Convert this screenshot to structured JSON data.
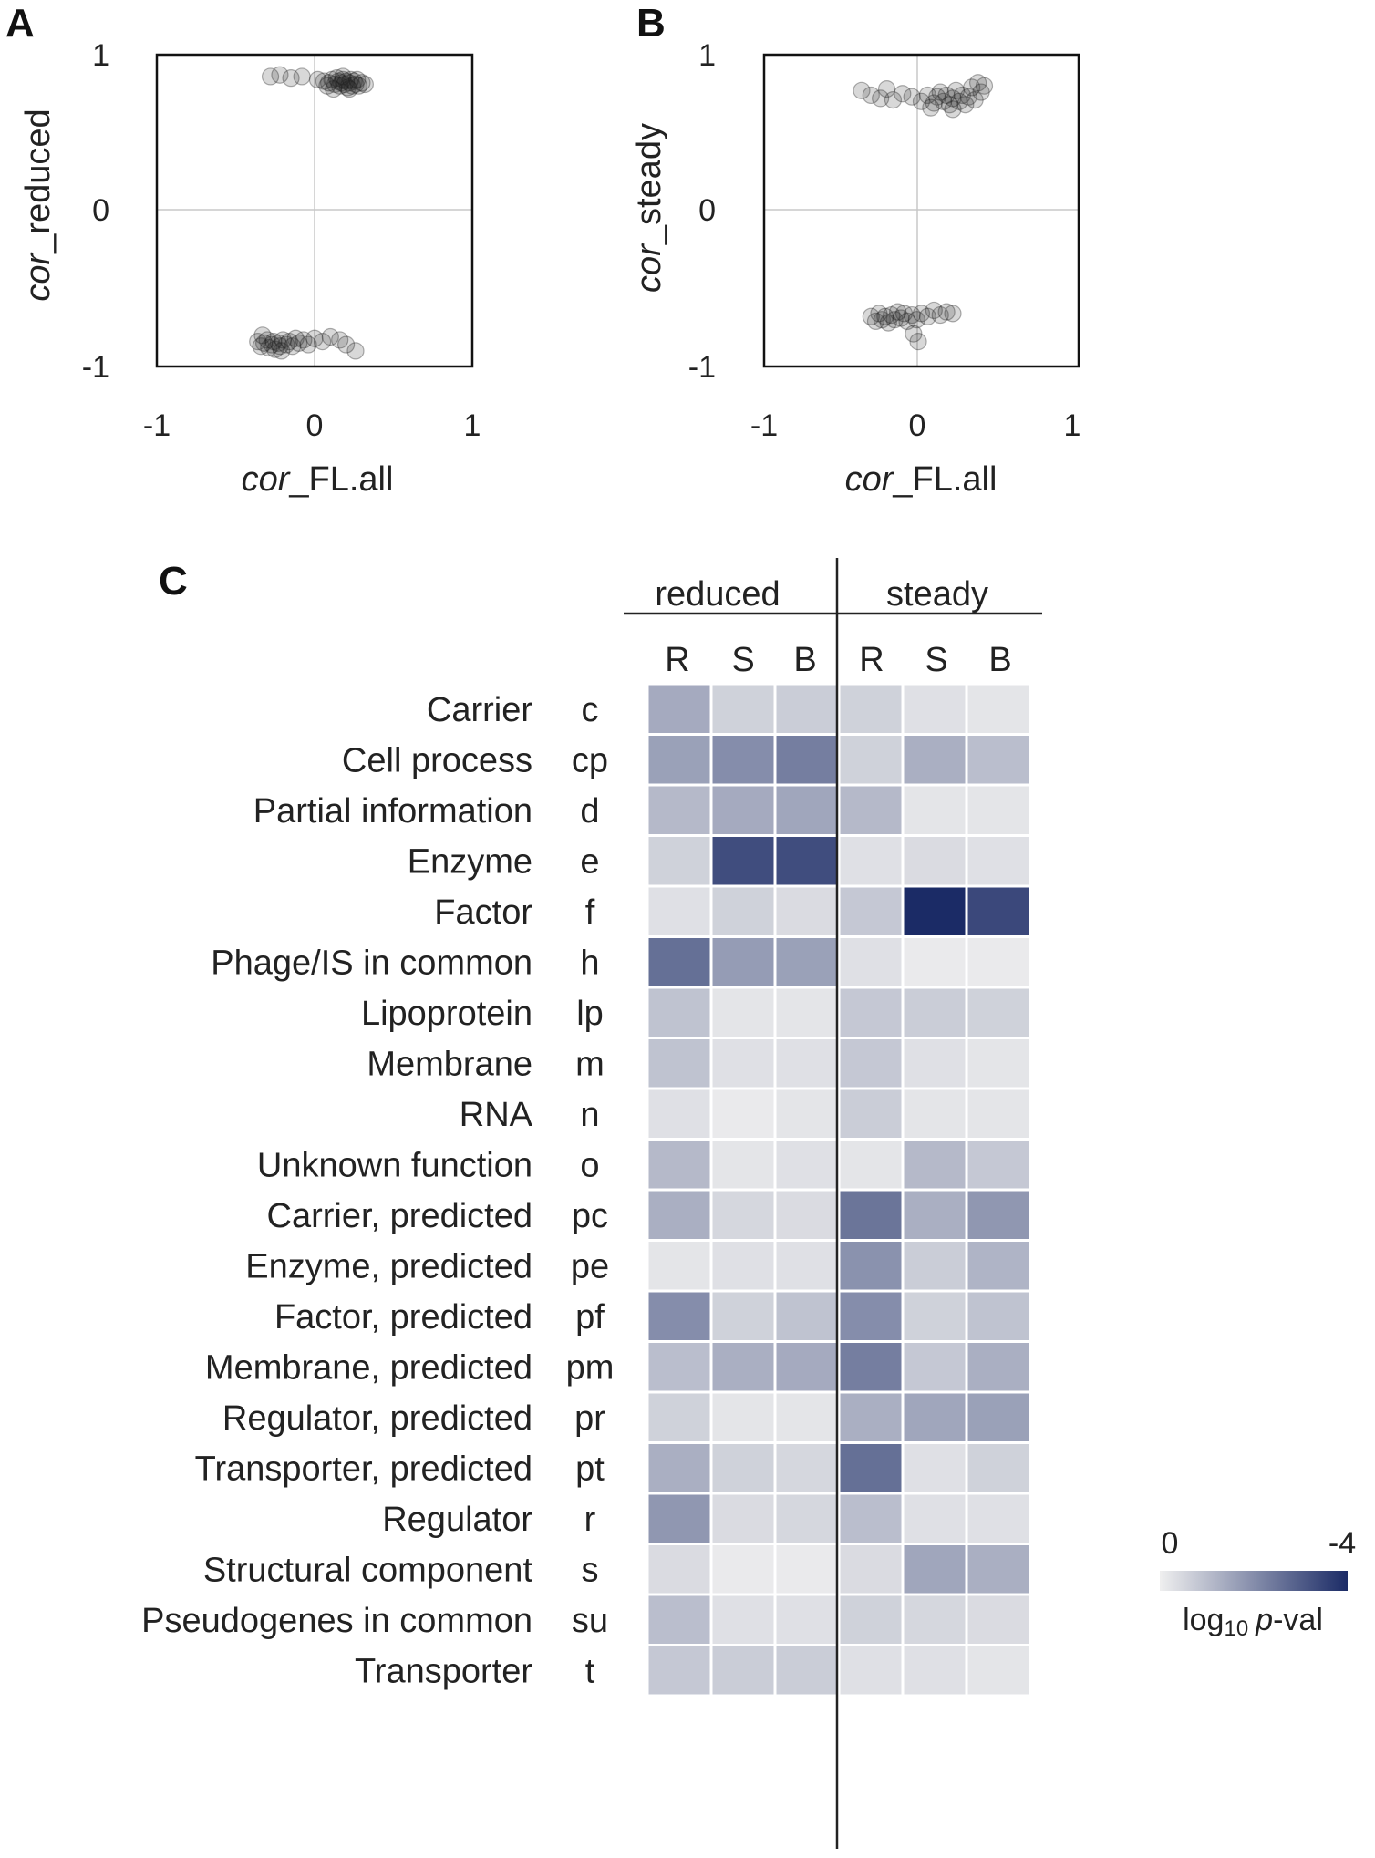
{
  "panels": {
    "A": {
      "letter": "A"
    },
    "B": {
      "letter": "B"
    },
    "C": {
      "letter": "C"
    }
  },
  "chart_data": [
    {
      "type": "scatter",
      "panel": "A",
      "xlabel_italic": "cor",
      "xlabel_rest": "_FL.all",
      "ylabel_italic": "cor",
      "ylabel_rest": "_reduced",
      "xlim": [
        -1,
        1
      ],
      "ylim": [
        -1,
        1
      ],
      "xticks": [
        "-1",
        "0",
        "1"
      ],
      "yticks": [
        "1",
        "0",
        "-1"
      ],
      "grid": "zero-lines",
      "points": [
        {
          "x": -0.28,
          "y": 0.86
        },
        {
          "x": -0.22,
          "y": 0.87
        },
        {
          "x": -0.15,
          "y": 0.85
        },
        {
          "x": -0.08,
          "y": 0.86
        },
        {
          "x": 0.02,
          "y": 0.84
        },
        {
          "x": 0.06,
          "y": 0.83
        },
        {
          "x": 0.09,
          "y": 0.82
        },
        {
          "x": 0.11,
          "y": 0.84
        },
        {
          "x": 0.13,
          "y": 0.81
        },
        {
          "x": 0.14,
          "y": 0.85
        },
        {
          "x": 0.15,
          "y": 0.83
        },
        {
          "x": 0.16,
          "y": 0.8
        },
        {
          "x": 0.17,
          "y": 0.82
        },
        {
          "x": 0.18,
          "y": 0.84
        },
        {
          "x": 0.19,
          "y": 0.81
        },
        {
          "x": 0.2,
          "y": 0.83
        },
        {
          "x": 0.21,
          "y": 0.79
        },
        {
          "x": 0.22,
          "y": 0.82
        },
        {
          "x": 0.23,
          "y": 0.84
        },
        {
          "x": 0.24,
          "y": 0.8
        },
        {
          "x": 0.25,
          "y": 0.83
        },
        {
          "x": 0.26,
          "y": 0.81
        },
        {
          "x": 0.27,
          "y": 0.84
        },
        {
          "x": 0.28,
          "y": 0.8
        },
        {
          "x": 0.3,
          "y": 0.82
        },
        {
          "x": 0.32,
          "y": 0.81
        },
        {
          "x": 0.12,
          "y": 0.78
        },
        {
          "x": 0.18,
          "y": 0.86
        },
        {
          "x": 0.22,
          "y": 0.78
        },
        {
          "x": 0.08,
          "y": 0.8
        },
        {
          "x": -0.36,
          "y": -0.84
        },
        {
          "x": -0.34,
          "y": -0.87
        },
        {
          "x": -0.32,
          "y": -0.85
        },
        {
          "x": -0.3,
          "y": -0.83
        },
        {
          "x": -0.29,
          "y": -0.88
        },
        {
          "x": -0.27,
          "y": -0.86
        },
        {
          "x": -0.26,
          "y": -0.84
        },
        {
          "x": -0.25,
          "y": -0.89
        },
        {
          "x": -0.23,
          "y": -0.85
        },
        {
          "x": -0.22,
          "y": -0.87
        },
        {
          "x": -0.2,
          "y": -0.83
        },
        {
          "x": -0.18,
          "y": -0.86
        },
        {
          "x": -0.16,
          "y": -0.84
        },
        {
          "x": -0.14,
          "y": -0.87
        },
        {
          "x": -0.12,
          "y": -0.82
        },
        {
          "x": -0.1,
          "y": -0.85
        },
        {
          "x": -0.07,
          "y": -0.83
        },
        {
          "x": -0.04,
          "y": -0.86
        },
        {
          "x": 0.0,
          "y": -0.82
        },
        {
          "x": 0.05,
          "y": -0.84
        },
        {
          "x": 0.1,
          "y": -0.81
        },
        {
          "x": 0.16,
          "y": -0.83
        },
        {
          "x": 0.2,
          "y": -0.86
        },
        {
          "x": 0.26,
          "y": -0.9
        },
        {
          "x": -0.33,
          "y": -0.8
        },
        {
          "x": -0.21,
          "y": -0.9
        }
      ]
    },
    {
      "type": "scatter",
      "panel": "B",
      "xlabel_italic": "cor",
      "xlabel_rest": "_FL.all",
      "ylabel_italic": "cor",
      "ylabel_rest": "_steady",
      "xlim": [
        -1,
        1
      ],
      "ylim": [
        -1,
        1
      ],
      "xticks": [
        "-1",
        "0",
        "1"
      ],
      "yticks": [
        "1",
        "0",
        "-1"
      ],
      "grid": "zero-lines",
      "points": [
        {
          "x": -0.38,
          "y": 0.77
        },
        {
          "x": -0.32,
          "y": 0.74
        },
        {
          "x": -0.26,
          "y": 0.72
        },
        {
          "x": -0.22,
          "y": 0.78
        },
        {
          "x": -0.18,
          "y": 0.71
        },
        {
          "x": -0.12,
          "y": 0.75
        },
        {
          "x": -0.06,
          "y": 0.73
        },
        {
          "x": 0.0,
          "y": 0.7
        },
        {
          "x": 0.04,
          "y": 0.74
        },
        {
          "x": 0.08,
          "y": 0.69
        },
        {
          "x": 0.1,
          "y": 0.73
        },
        {
          "x": 0.12,
          "y": 0.76
        },
        {
          "x": 0.14,
          "y": 0.7
        },
        {
          "x": 0.16,
          "y": 0.74
        },
        {
          "x": 0.18,
          "y": 0.68
        },
        {
          "x": 0.2,
          "y": 0.72
        },
        {
          "x": 0.22,
          "y": 0.77
        },
        {
          "x": 0.24,
          "y": 0.7
        },
        {
          "x": 0.26,
          "y": 0.74
        },
        {
          "x": 0.28,
          "y": 0.68
        },
        {
          "x": 0.3,
          "y": 0.73
        },
        {
          "x": 0.32,
          "y": 0.79
        },
        {
          "x": 0.34,
          "y": 0.71
        },
        {
          "x": 0.36,
          "y": 0.82
        },
        {
          "x": 0.38,
          "y": 0.76
        },
        {
          "x": 0.4,
          "y": 0.8
        },
        {
          "x": 0.06,
          "y": 0.66
        },
        {
          "x": 0.2,
          "y": 0.65
        },
        {
          "x": -0.32,
          "y": -0.68
        },
        {
          "x": -0.29,
          "y": -0.71
        },
        {
          "x": -0.27,
          "y": -0.66
        },
        {
          "x": -0.25,
          "y": -0.7
        },
        {
          "x": -0.23,
          "y": -0.68
        },
        {
          "x": -0.21,
          "y": -0.72
        },
        {
          "x": -0.19,
          "y": -0.67
        },
        {
          "x": -0.17,
          "y": -0.7
        },
        {
          "x": -0.15,
          "y": -0.65
        },
        {
          "x": -0.13,
          "y": -0.69
        },
        {
          "x": -0.11,
          "y": -0.66
        },
        {
          "x": -0.09,
          "y": -0.71
        },
        {
          "x": -0.06,
          "y": -0.67
        },
        {
          "x": -0.03,
          "y": -0.7
        },
        {
          "x": 0.0,
          "y": -0.66
        },
        {
          "x": 0.04,
          "y": -0.68
        },
        {
          "x": 0.08,
          "y": -0.64
        },
        {
          "x": 0.12,
          "y": -0.67
        },
        {
          "x": 0.16,
          "y": -0.65
        },
        {
          "x": 0.2,
          "y": -0.66
        },
        {
          "x": -0.05,
          "y": -0.79
        },
        {
          "x": -0.02,
          "y": -0.84
        }
      ]
    },
    {
      "type": "heatmap",
      "panel": "C",
      "groups": [
        "reduced",
        "steady"
      ],
      "columns": [
        "R",
        "S",
        "B",
        "R",
        "S",
        "B"
      ],
      "rows": [
        {
          "label": "Carrier",
          "code": "c"
        },
        {
          "label": "Cell process",
          "code": "cp"
        },
        {
          "label": "Partial information",
          "code": "d"
        },
        {
          "label": "Enzyme",
          "code": "e"
        },
        {
          "label": "Factor",
          "code": "f"
        },
        {
          "label": "Phage/IS in common",
          "code": "h"
        },
        {
          "label": "Lipoprotein",
          "code": "lp"
        },
        {
          "label": "Membrane",
          "code": "m"
        },
        {
          "label": "RNA",
          "code": "n"
        },
        {
          "label": "Unknown function",
          "code": "o"
        },
        {
          "label": "Carrier, predicted",
          "code": "pc"
        },
        {
          "label": "Enzyme, predicted",
          "code": "pe"
        },
        {
          "label": "Factor, predicted",
          "code": "pf"
        },
        {
          "label": "Membrane, predicted",
          "code": "pm"
        },
        {
          "label": "Regulator, predicted",
          "code": "pr"
        },
        {
          "label": "Transporter, predicted",
          "code": "pt"
        },
        {
          "label": "Regulator",
          "code": "r"
        },
        {
          "label": "Structural component",
          "code": "s"
        },
        {
          "label": "Pseudogenes in common",
          "code": "su"
        },
        {
          "label": "Transporter",
          "code": "t"
        }
      ],
      "values": [
        [
          -1.4,
          -0.6,
          -0.7,
          -0.6,
          -0.3,
          -0.2
        ],
        [
          -1.6,
          -2.0,
          -2.3,
          -0.6,
          -1.3,
          -1.0
        ],
        [
          -1.1,
          -1.4,
          -1.5,
          -1.1,
          -0.2,
          -0.2
        ],
        [
          -0.6,
          -3.3,
          -3.3,
          -0.3,
          -0.4,
          -0.3
        ],
        [
          -0.3,
          -0.6,
          -0.4,
          -0.8,
          -4.0,
          -3.4
        ],
        [
          -2.6,
          -1.7,
          -1.6,
          -0.3,
          -0.1,
          -0.1
        ],
        [
          -0.9,
          -0.2,
          -0.2,
          -0.8,
          -0.7,
          -0.6
        ],
        [
          -0.9,
          -0.3,
          -0.3,
          -0.8,
          -0.3,
          -0.2
        ],
        [
          -0.3,
          -0.1,
          -0.2,
          -0.7,
          -0.2,
          -0.2
        ],
        [
          -1.1,
          -0.2,
          -0.3,
          -0.2,
          -1.1,
          -0.8
        ],
        [
          -1.3,
          -0.5,
          -0.4,
          -2.5,
          -1.3,
          -1.8
        ],
        [
          -0.2,
          -0.3,
          -0.3,
          -1.9,
          -0.7,
          -1.2
        ],
        [
          -2.0,
          -0.6,
          -0.9,
          -2.0,
          -0.6,
          -0.9
        ],
        [
          -1.0,
          -1.3,
          -1.4,
          -2.3,
          -0.8,
          -1.3
        ],
        [
          -0.6,
          -0.2,
          -0.2,
          -1.3,
          -1.5,
          -1.6
        ],
        [
          -1.3,
          -0.6,
          -0.5,
          -2.6,
          -0.3,
          -0.6
        ],
        [
          -1.8,
          -0.4,
          -0.5,
          -1.0,
          -0.3,
          -0.3
        ],
        [
          -0.4,
          -0.1,
          -0.1,
          -0.4,
          -1.5,
          -1.3
        ],
        [
          -1.0,
          -0.3,
          -0.3,
          -0.6,
          -0.5,
          -0.4
        ],
        [
          -0.8,
          -0.7,
          -0.7,
          -0.3,
          -0.3,
          -0.2
        ]
      ],
      "scale_min": 0,
      "scale_max": -4,
      "colors": {
        "low": "#efefef",
        "high": "#1b2b66"
      },
      "legend": {
        "min_label": "0",
        "max_label": "-4",
        "title_prefix": "log",
        "title_sub": "10",
        "title_italic": "p",
        "title_suffix": "-val"
      }
    }
  ]
}
